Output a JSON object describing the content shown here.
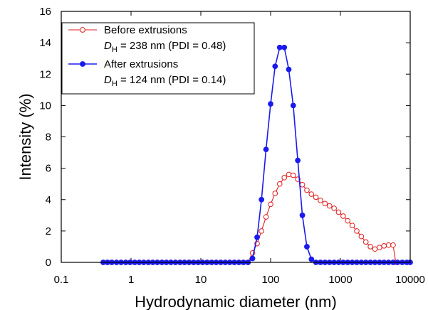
{
  "chart_data": {
    "type": "line",
    "xlabel": "Hydrodynamic diameter (nm)",
    "ylabel": "Intensity (%)",
    "xscale": "log",
    "xlim": [
      0.1,
      10000
    ],
    "ylim": [
      0,
      16
    ],
    "xticks": [
      0.1,
      1,
      10,
      100,
      1000,
      10000
    ],
    "xtick_labels": [
      "0.1",
      "1",
      "10",
      "100",
      "1000",
      "10000"
    ],
    "yticks": [
      0,
      2,
      4,
      6,
      8,
      10,
      12,
      14,
      16
    ],
    "ytick_labels": [
      "0",
      "2",
      "4",
      "6",
      "8",
      "10",
      "12",
      "14",
      "16"
    ],
    "grid": false,
    "legend_position": "top-left",
    "legend": [
      {
        "line1": "Before extrusions",
        "dh_symbol": "D",
        "dh_sub": "H",
        "dh_rest": " = 238 nm (PDI = 0.48)"
      },
      {
        "line1": "After extrusions",
        "dh_symbol": "D",
        "dh_sub": "H",
        "dh_rest": " = 124 nm (PDI = 0.14)"
      }
    ],
    "series": [
      {
        "name": "Before extrusions",
        "color": "#e01e1e",
        "marker": "open-circle",
        "x": [
          0.4,
          0.46,
          0.53,
          0.62,
          0.72,
          0.84,
          0.97,
          1.13,
          1.31,
          1.52,
          1.77,
          2.05,
          2.38,
          2.77,
          3.21,
          3.73,
          4.33,
          5.03,
          5.84,
          6.78,
          7.88,
          9.15,
          10.6,
          12.3,
          14.3,
          16.6,
          19.3,
          22.4,
          26.0,
          30.2,
          35.1,
          40.8,
          47.4,
          55,
          64,
          74,
          86,
          100,
          116,
          135,
          157,
          182,
          211,
          245,
          285,
          331,
          384,
          446,
          518,
          602,
          699,
          812,
          943,
          1095,
          1272,
          1478,
          1717,
          1994,
          2316,
          2690,
          3125,
          3630,
          4217,
          4898,
          5690,
          6200
        ],
        "y": [
          0,
          0,
          0,
          0,
          0,
          0,
          0,
          0,
          0,
          0,
          0,
          0,
          0,
          0,
          0,
          0,
          0,
          0,
          0,
          0,
          0,
          0,
          0,
          0,
          0,
          0,
          0,
          0,
          0,
          0,
          0,
          0,
          0,
          0.6,
          1.2,
          2.0,
          2.9,
          3.7,
          4.4,
          5.0,
          5.4,
          5.6,
          5.55,
          5.3,
          4.95,
          4.6,
          4.35,
          4.15,
          3.95,
          3.75,
          3.6,
          3.45,
          3.2,
          2.95,
          2.65,
          2.35,
          2.0,
          1.65,
          1.3,
          1.0,
          0.85,
          0.95,
          1.05,
          1.1,
          1.1,
          0
        ]
      },
      {
        "name": "After extrusions",
        "color": "#1a1aee",
        "marker": "filled-circle",
        "x": [
          0.4,
          0.46,
          0.53,
          0.62,
          0.72,
          0.84,
          0.97,
          1.13,
          1.31,
          1.52,
          1.77,
          2.05,
          2.38,
          2.77,
          3.21,
          3.73,
          4.33,
          5.03,
          5.84,
          6.78,
          7.88,
          9.15,
          10.6,
          12.3,
          14.3,
          16.6,
          19.3,
          22.4,
          26.0,
          30.2,
          35.1,
          40.8,
          47.4,
          55,
          64,
          74,
          86,
          100,
          116,
          135,
          157,
          182,
          211,
          245,
          285,
          331,
          384,
          446,
          518,
          602,
          699,
          812,
          943,
          1095,
          1272,
          1478,
          1717,
          1994,
          2316,
          2690,
          3125,
          3630,
          4217,
          4898,
          5690,
          6600,
          7700,
          8950,
          10000
        ],
        "y": [
          0,
          0,
          0,
          0,
          0,
          0,
          0,
          0,
          0,
          0,
          0,
          0,
          0,
          0,
          0,
          0,
          0,
          0,
          0,
          0,
          0,
          0,
          0,
          0,
          0,
          0,
          0,
          0,
          0,
          0,
          0,
          0,
          0,
          0.25,
          1.6,
          4.0,
          7.2,
          10.1,
          12.5,
          13.7,
          13.7,
          12.3,
          10.0,
          6.5,
          3.0,
          1.0,
          0.2,
          0,
          0,
          0,
          0,
          0,
          0,
          0,
          0,
          0,
          0,
          0,
          0,
          0,
          0,
          0,
          0,
          0,
          0,
          0,
          0,
          0,
          0
        ]
      }
    ]
  }
}
